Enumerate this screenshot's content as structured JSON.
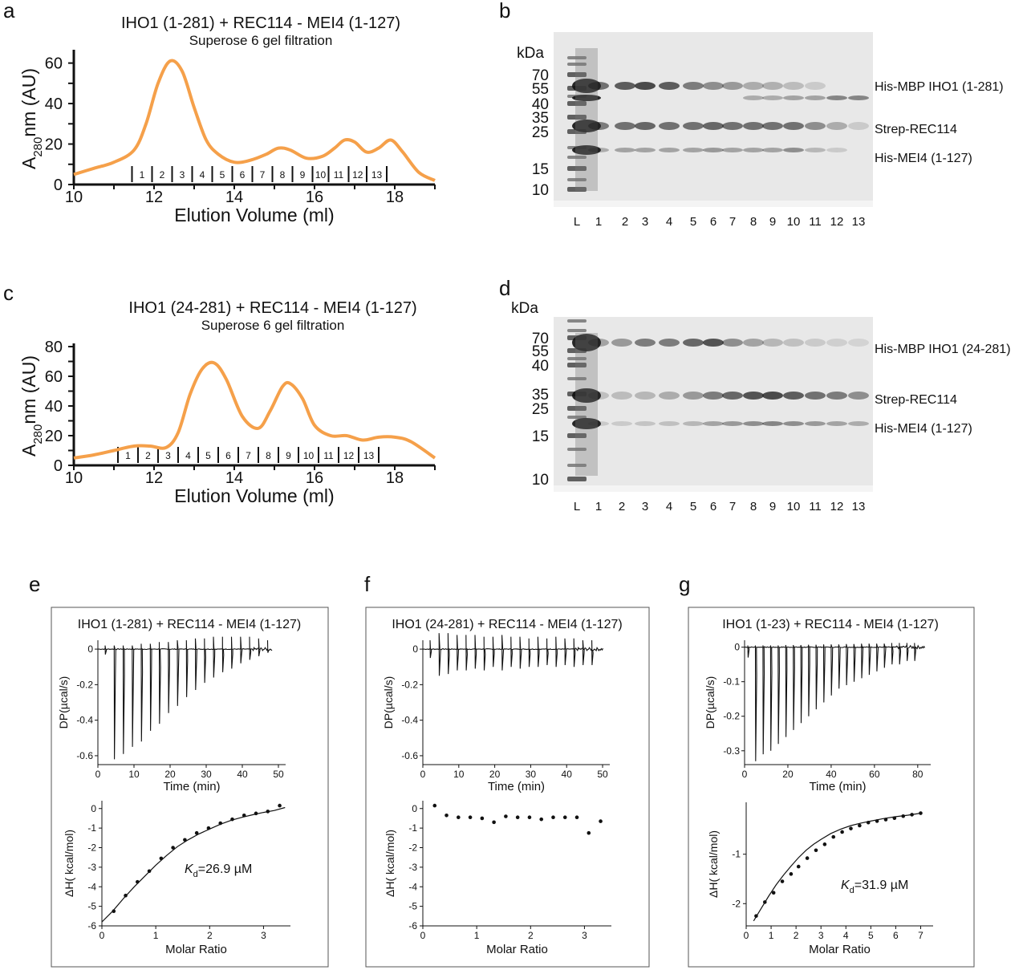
{
  "panel_labels": [
    "a",
    "b",
    "c",
    "d",
    "e",
    "f",
    "g"
  ],
  "chart_data": [
    {
      "id": "a",
      "type": "line",
      "title": "IHO1 (1-281) + REC114 - MEI4 (1-127)",
      "subtitle": "Superose 6 gel filtration",
      "xlabel": "Elution Volume (ml)",
      "ylabel_main": "A",
      "ylabel_sub": "280",
      "ylabel_rest": "nm (AU)",
      "xlim": [
        10,
        19
      ],
      "ylim": [
        0,
        65
      ],
      "xticks": [
        10,
        12,
        14,
        16,
        18
      ],
      "yticks": [
        0,
        20,
        40,
        60
      ],
      "color": "#f5a04a",
      "x": [
        10.0,
        10.5,
        11.0,
        11.5,
        11.8,
        12.1,
        12.4,
        12.7,
        13.0,
        13.3,
        13.6,
        14.0,
        14.4,
        14.8,
        15.1,
        15.4,
        15.8,
        16.2,
        16.5,
        16.75,
        17.0,
        17.3,
        17.6,
        17.9,
        18.2,
        18.6,
        19.0
      ],
      "y": [
        5,
        8,
        11,
        17,
        30,
        50,
        61,
        56,
        38,
        22,
        15,
        11,
        12,
        15,
        18,
        17,
        13,
        14,
        18,
        22,
        21,
        16,
        18,
        22,
        16,
        6,
        2
      ],
      "fraction_ticks": [
        11.45,
        11.95,
        12.45,
        12.95,
        13.45,
        13.95,
        14.45,
        14.95,
        15.45,
        15.95,
        16.35,
        16.85,
        17.3,
        17.8
      ],
      "fractions": [
        "1",
        "2",
        "3",
        "4",
        "5",
        "6",
        "7",
        "8",
        "9",
        "10",
        "11",
        "12",
        "13"
      ]
    },
    {
      "id": "c",
      "type": "line",
      "title": "IHO1 (24-281) + REC114 - MEI4 (1-127)",
      "subtitle": "Superose 6 gel filtration",
      "xlabel": "Elution Volume (ml)",
      "ylabel_main": "A",
      "ylabel_sub": "280",
      "ylabel_rest": "nm (AU)",
      "xlim": [
        10,
        19
      ],
      "ylim": [
        0,
        80
      ],
      "xticks": [
        10,
        12,
        14,
        16,
        18
      ],
      "yticks": [
        0,
        20,
        40,
        60,
        80
      ],
      "color": "#f5a04a",
      "x": [
        10.0,
        10.5,
        11.0,
        11.5,
        11.9,
        12.3,
        12.6,
        12.9,
        13.2,
        13.5,
        13.8,
        14.2,
        14.6,
        14.9,
        15.2,
        15.4,
        15.7,
        16.0,
        16.4,
        16.8,
        17.2,
        17.6,
        18.0,
        18.4,
        19.0
      ],
      "y": [
        5,
        7,
        10,
        13,
        13,
        12,
        22,
        48,
        65,
        69,
        58,
        33,
        25,
        37,
        53,
        55,
        45,
        27,
        20,
        20,
        17,
        19,
        19,
        16,
        5
      ],
      "fraction_ticks": [
        11.1,
        11.6,
        12.1,
        12.6,
        13.1,
        13.6,
        14.1,
        14.6,
        15.1,
        15.6,
        16.1,
        16.6,
        17.1,
        17.6
      ],
      "fractions": [
        "1",
        "2",
        "3",
        "4",
        "5",
        "6",
        "7",
        "8",
        "9",
        "10",
        "11",
        "12",
        "13"
      ]
    },
    {
      "id": "e_top",
      "type": "line",
      "title": "IHO1 (1-281) + REC114 - MEI4 (1-127)",
      "xlabel": "Time (min)",
      "ylabel": "DP(µcal/s)",
      "xlim": [
        0,
        52
      ],
      "ylim": [
        -0.65,
        0.05
      ],
      "xticks": [
        0,
        10,
        20,
        30,
        40,
        50
      ],
      "yticks": [
        0,
        -0.2,
        -0.4,
        -0.6
      ],
      "ytick_labels": [
        "0",
        "-0.2",
        "-0.4",
        "-0.6"
      ],
      "injection_times": [
        2.0,
        4.5,
        7.0,
        9.5,
        12.0,
        14.5,
        17.0,
        19.5,
        22.0,
        24.5,
        27.0,
        29.5,
        32.0,
        34.5,
        37.0,
        39.5,
        42.0,
        44.5,
        47.0
      ],
      "spike_depths": [
        -0.03,
        -0.62,
        -0.59,
        -0.55,
        -0.52,
        -0.46,
        -0.42,
        -0.36,
        -0.32,
        -0.27,
        -0.23,
        -0.19,
        -0.16,
        -0.13,
        -0.11,
        -0.08,
        -0.06,
        -0.04,
        -0.02
      ],
      "positive_spikes": [
        0.02,
        0.02,
        0.02,
        0.02,
        0.03,
        0.03,
        0.04,
        0.04,
        0.05,
        0.05,
        0.06,
        0.06,
        0.07,
        0.07,
        0.07,
        0.07,
        0.07,
        0.06,
        0.05
      ],
      "noise_end": [
        43,
        48
      ]
    },
    {
      "id": "e_bottom",
      "type": "scatter",
      "xlabel": "Molar Ratio",
      "ylabel": "ΔH( kcal/mol)",
      "xlim": [
        0,
        3.5
      ],
      "ylim": [
        -6,
        0.4
      ],
      "xticks": [
        0,
        1,
        2,
        3
      ],
      "yticks": [
        0,
        -1,
        -2,
        -3,
        -4,
        -5,
        -6
      ],
      "x": [
        0.22,
        0.44,
        0.66,
        0.88,
        1.1,
        1.32,
        1.54,
        1.76,
        1.98,
        2.2,
        2.42,
        2.64,
        2.86,
        3.08,
        3.3
      ],
      "y": [
        -5.25,
        -4.45,
        -3.75,
        -3.2,
        -2.55,
        -2.0,
        -1.6,
        -1.25,
        -1.0,
        -0.75,
        -0.55,
        -0.35,
        -0.25,
        -0.15,
        0.15
      ],
      "fit_x": [
        0,
        0.2,
        0.4,
        0.6,
        0.8,
        1.0,
        1.2,
        1.4,
        1.6,
        1.8,
        2.0,
        2.2,
        2.4,
        2.6,
        2.8,
        3.0,
        3.2,
        3.4
      ],
      "fit_y": [
        -5.8,
        -5.25,
        -4.6,
        -4.0,
        -3.45,
        -2.9,
        -2.4,
        -1.95,
        -1.6,
        -1.3,
        -1.05,
        -0.8,
        -0.6,
        -0.45,
        -0.32,
        -0.2,
        -0.1,
        0.05
      ],
      "annotation_k": "K",
      "annotation_sub": "d",
      "annotation_rest": "=26.9 µM"
    },
    {
      "id": "f_top",
      "type": "line",
      "title": "IHO1 (24-281) + REC114 - MEI4 (1-127)",
      "xlabel": "Time (min)",
      "ylabel": "DP(µcal/s)",
      "xlim": [
        0,
        52
      ],
      "ylim": [
        -0.65,
        0.05
      ],
      "xticks": [
        0,
        10,
        20,
        30,
        40,
        50
      ],
      "yticks": [
        0,
        -0.2,
        -0.4,
        -0.6
      ],
      "ytick_labels": [
        "0",
        "-0.2",
        "-0.4",
        "-0.6"
      ],
      "injection_times": [
        2.0,
        4.5,
        7.0,
        9.5,
        12.0,
        14.5,
        17.0,
        19.5,
        22.0,
        24.5,
        27.0,
        29.5,
        32.0,
        34.5,
        37.0,
        39.5,
        42.0,
        44.5,
        47.0
      ],
      "spike_depths": [
        -0.05,
        -0.15,
        -0.14,
        -0.12,
        -0.12,
        -0.11,
        -0.12,
        -0.1,
        -0.12,
        -0.1,
        -0.11,
        -0.1,
        -0.1,
        -0.09,
        -0.1,
        -0.09,
        -0.1,
        -0.09,
        -0.09
      ],
      "positive_spikes": [
        0.05,
        0.09,
        0.09,
        0.08,
        0.08,
        0.08,
        0.07,
        0.07,
        0.08,
        0.07,
        0.07,
        0.06,
        0.07,
        0.06,
        0.07,
        0.06,
        0.06,
        0.05,
        0.05
      ],
      "noise_end": [
        42,
        50
      ]
    },
    {
      "id": "f_bottom",
      "type": "scatter",
      "xlabel": "Molar Ratio",
      "ylabel": "ΔH( kcal/mol)",
      "xlim": [
        0,
        3.5
      ],
      "ylim": [
        -6,
        0.4
      ],
      "xticks": [
        0,
        1,
        2,
        3
      ],
      "yticks": [
        0,
        -1,
        -2,
        -3,
        -4,
        -5,
        -6
      ],
      "x": [
        0.22,
        0.44,
        0.66,
        0.88,
        1.1,
        1.32,
        1.54,
        1.76,
        1.98,
        2.2,
        2.42,
        2.64,
        2.86,
        3.08,
        3.3
      ],
      "y": [
        0.15,
        -0.35,
        -0.45,
        -0.45,
        -0.5,
        -0.7,
        -0.4,
        -0.45,
        -0.45,
        -0.55,
        -0.45,
        -0.45,
        -0.45,
        -1.25,
        -0.65
      ]
    },
    {
      "id": "g_top",
      "type": "line",
      "title": "IHO1 (1-23) + REC114 - MEI4 (1-127)",
      "xlabel": "Time (min)",
      "ylabel": "DP(µcal/s)",
      "xlim": [
        0,
        86
      ],
      "ylim": [
        -0.34,
        0.02
      ],
      "xticks": [
        0,
        20,
        40,
        60,
        80
      ],
      "yticks": [
        0,
        -0.1,
        -0.2,
        -0.3
      ],
      "ytick_labels": [
        "0",
        "-0.1",
        "-0.2",
        "-0.3"
      ],
      "injection_times": [
        1.5,
        5.0,
        8.5,
        12.0,
        15.5,
        19.0,
        22.5,
        26.0,
        29.5,
        33.0,
        36.5,
        40.0,
        43.5,
        47.0,
        50.5,
        54.0,
        57.5,
        61.0,
        64.5,
        68.0,
        71.5,
        75.0,
        78.5
      ],
      "spike_depths": [
        -0.03,
        -0.33,
        -0.31,
        -0.3,
        -0.28,
        -0.26,
        -0.24,
        -0.22,
        -0.2,
        -0.18,
        -0.16,
        -0.14,
        -0.12,
        -0.11,
        -0.1,
        -0.09,
        -0.08,
        -0.07,
        -0.06,
        -0.05,
        -0.05,
        -0.04,
        -0.04
      ],
      "positive_spikes": [
        0.005,
        0.005,
        0.005,
        0.005,
        0.005,
        0.006,
        0.006,
        0.006,
        0.007,
        0.007,
        0.008,
        0.008,
        0.008,
        0.009,
        0.009,
        0.01,
        0.01,
        0.01,
        0.01,
        0.012,
        0.012,
        0.012,
        0.012
      ],
      "noise_end": [
        70,
        83
      ]
    },
    {
      "id": "g_bottom",
      "type": "scatter",
      "xlabel": "Molar Ratio",
      "ylabel": "ΔH( kcal/mol)",
      "xlim": [
        0,
        7.5
      ],
      "ylim": [
        -2.45,
        0.05
      ],
      "xticks": [
        0,
        1,
        2,
        3,
        4,
        5,
        6,
        7
      ],
      "yticks": [
        -1,
        -2
      ],
      "x": [
        0.4,
        0.75,
        1.1,
        1.45,
        1.8,
        2.1,
        2.45,
        2.8,
        3.15,
        3.5,
        3.85,
        4.2,
        4.55,
        4.9,
        5.25,
        5.6,
        5.95,
        6.3,
        6.65,
        7.0
      ],
      "y": [
        -2.25,
        -1.97,
        -1.78,
        -1.55,
        -1.4,
        -1.25,
        -1.08,
        -0.92,
        -0.8,
        -0.65,
        -0.55,
        -0.48,
        -0.42,
        -0.36,
        -0.33,
        -0.3,
        -0.27,
        -0.23,
        -0.2,
        -0.17
      ],
      "fit_x": [
        0.3,
        0.6,
        0.9,
        1.2,
        1.5,
        1.8,
        2.1,
        2.4,
        2.7,
        3.0,
        3.4,
        3.8,
        4.2,
        4.6,
        5.0,
        5.5,
        6.0,
        6.5,
        7.0
      ],
      "fit_y": [
        -2.35,
        -2.1,
        -1.85,
        -1.62,
        -1.42,
        -1.24,
        -1.07,
        -0.92,
        -0.8,
        -0.7,
        -0.58,
        -0.49,
        -0.42,
        -0.37,
        -0.33,
        -0.28,
        -0.24,
        -0.21,
        -0.17
      ],
      "annotation_k": "K",
      "annotation_sub": "d",
      "annotation_rest": "=31.9 µM"
    }
  ],
  "gels": [
    {
      "id": "b",
      "kda_title": "kDa",
      "markers": [
        {
          "label": "70",
          "mw": 70
        },
        {
          "label": "55",
          "mw": 55
        },
        {
          "label": "40",
          "mw": 40
        },
        {
          "label": "35",
          "mw": 35
        },
        {
          "label": "25",
          "mw": 25
        },
        {
          "label": "15",
          "mw": 15
        },
        {
          "label": "10",
          "mw": 10
        }
      ],
      "lanes": [
        "L",
        "1",
        "2",
        "3",
        "4",
        "5",
        "6",
        "7",
        "8",
        "9",
        "10",
        "11",
        "12",
        "13"
      ],
      "band_labels": [
        "His-MBP IHO1 (1-281)",
        "Strep-REC114",
        "His-MEI4 (1-127)"
      ]
    },
    {
      "id": "d",
      "kda_title": "kDa",
      "markers": [
        {
          "label": "70",
          "mw": 70
        },
        {
          "label": "55",
          "mw": 55
        },
        {
          "label": "40",
          "mw": 40
        },
        {
          "label": "35",
          "mw": 35
        },
        {
          "label": "25",
          "mw": 25
        },
        {
          "label": "15",
          "mw": 15
        },
        {
          "label": "10",
          "mw": 10
        }
      ],
      "lanes": [
        "L",
        "1",
        "2",
        "3",
        "4",
        "5",
        "6",
        "7",
        "8",
        "9",
        "10",
        "11",
        "12",
        "13"
      ],
      "band_labels": [
        "His-MBP IHO1 (24-281)",
        "Strep-REC114",
        "His-MEI4 (1-127)"
      ]
    }
  ]
}
